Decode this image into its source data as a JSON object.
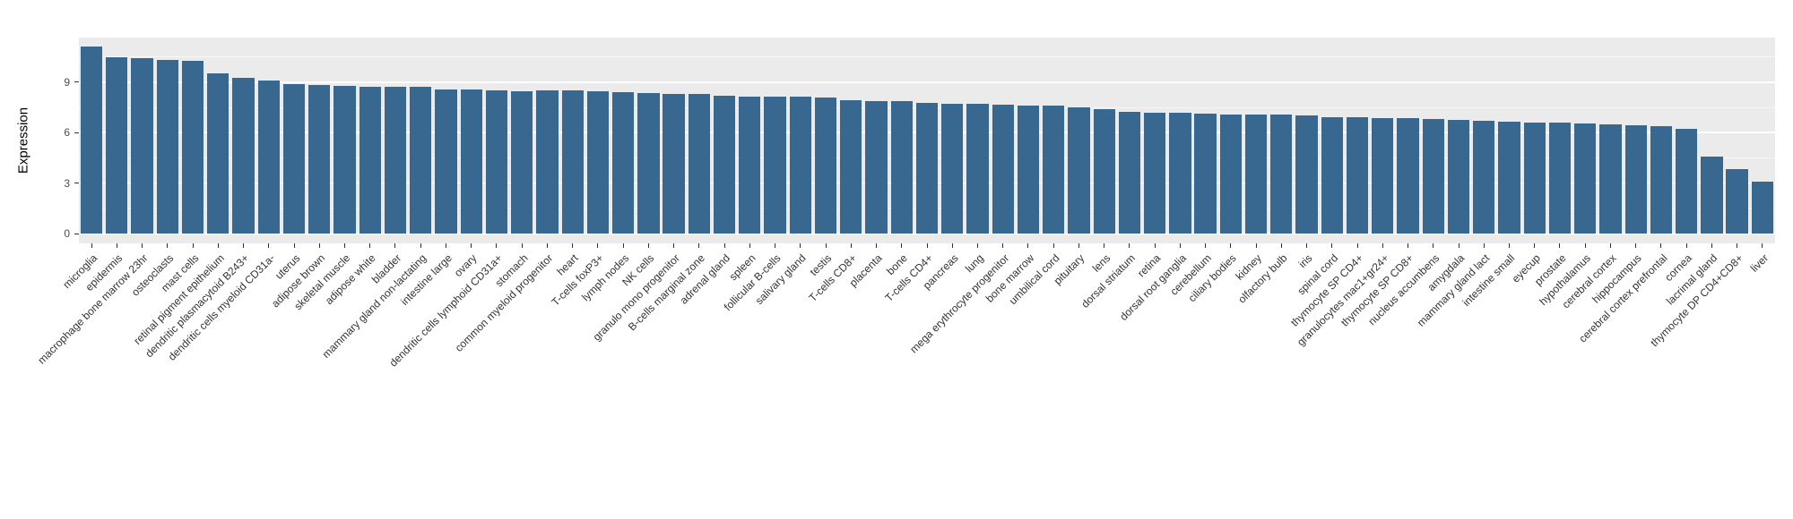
{
  "chart_data": {
    "type": "bar",
    "title": "",
    "xlabel": "",
    "ylabel": "Expression",
    "ylim": [
      0,
      11.7
    ],
    "yticks": [
      0,
      3,
      6,
      9
    ],
    "minor_gridlines": [
      1.5,
      4.5,
      7.5,
      10.5
    ],
    "legend": "none",
    "grid": "on",
    "colors": {
      "bar": "#38678f",
      "panel": "#ebebeb",
      "axis_text": "#4d4d4d"
    },
    "categories": [
      "microglia",
      "epidermis",
      "macrophage bone marrow 23hr",
      "osteoclasts",
      "mast cells",
      "retinal pigment epithelium",
      "dendritic plasmacytoid B243+",
      "dendritic cells myeloid CD31a-",
      "uterus",
      "adipose brown",
      "skeletal muscle",
      "adipose white",
      "bladder",
      "mammary gland non-lactating",
      "intestine large",
      "ovary",
      "dendritic cells lymphoid CD31a+",
      "stomach",
      "common myeloid progenitor",
      "heart",
      "T-cells foxP3+",
      "lymph nodes",
      "NK cells",
      "granulo mono progenitor",
      "B-cells marginal zone",
      "adrenal gland",
      "spleen",
      "follicular B-cells",
      "salivary gland",
      "testis",
      "T-cells CD8+",
      "placenta",
      "bone",
      "T-cells CD4+",
      "pancreas",
      "lung",
      "mega erythrocyte progenitor",
      "bone marrow",
      "umbilical cord",
      "pituitary",
      "lens",
      "dorsal striatum",
      "retina",
      "dorsal root ganglia",
      "cerebellum",
      "ciliary bodies",
      "kidney",
      "olfactory bulb",
      "iris",
      "spinal cord",
      "thymocyte SP CD4+",
      "granulocytes mac1+gr24+",
      "thymocyte SP CD8+",
      "nucleus accumbens",
      "amygdala",
      "mammary gland lact",
      "intestine small",
      "eyecup",
      "prostate",
      "hypothalamus",
      "cerebral cortex",
      "hippocampus",
      "cerebral cortex prefrontal",
      "cornea",
      "lacrimal gland",
      "thymocyte DP CD4+CD8+",
      "liver"
    ],
    "values": [
      11.1,
      10.5,
      10.45,
      10.3,
      10.25,
      9.5,
      9.25,
      9.1,
      8.9,
      8.85,
      8.8,
      8.75,
      8.75,
      8.7,
      8.55,
      8.55,
      8.5,
      8.45,
      8.5,
      8.5,
      8.45,
      8.4,
      8.35,
      8.3,
      8.3,
      8.2,
      8.15,
      8.15,
      8.15,
      8.1,
      7.9,
      7.85,
      7.85,
      7.75,
      7.7,
      7.7,
      7.65,
      7.6,
      7.6,
      7.5,
      7.4,
      7.25,
      7.2,
      7.2,
      7.15,
      7.1,
      7.1,
      7.05,
      7.0,
      6.9,
      6.9,
      6.85,
      6.85,
      6.8,
      6.75,
      6.7,
      6.65,
      6.6,
      6.6,
      6.55,
      6.5,
      6.45,
      6.4,
      6.2,
      4.6,
      3.85,
      3.1
    ]
  }
}
